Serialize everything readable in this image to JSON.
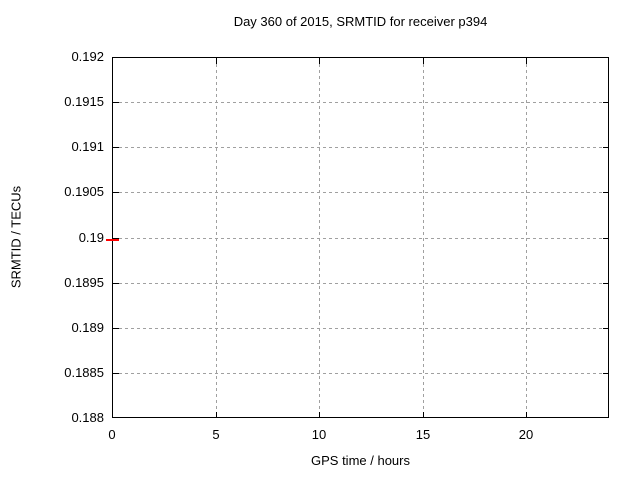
{
  "chart_data": {
    "type": "scatter",
    "title": "Day 360 of 2015, SRMTID for receiver p394",
    "xlabel": "GPS time / hours",
    "ylabel": "SRMTID / TECUs",
    "xlim": [
      0,
      24
    ],
    "ylim": [
      0.188,
      0.192
    ],
    "xticks": [
      {
        "value": 0,
        "label": "0"
      },
      {
        "value": 5,
        "label": "5"
      },
      {
        "value": 10,
        "label": "10"
      },
      {
        "value": 15,
        "label": "15"
      },
      {
        "value": 20,
        "label": "20"
      }
    ],
    "yticks": [
      {
        "value": 0.188,
        "label": "0.188"
      },
      {
        "value": 0.1885,
        "label": "0.1885"
      },
      {
        "value": 0.189,
        "label": "0.189"
      },
      {
        "value": 0.1895,
        "label": "0.1895"
      },
      {
        "value": 0.19,
        "label": "0.19"
      },
      {
        "value": 0.1905,
        "label": "0.1905"
      },
      {
        "value": 0.191,
        "label": "0.191"
      },
      {
        "value": 0.1915,
        "label": "0.1915"
      },
      {
        "value": 0.192,
        "label": "0.192"
      }
    ],
    "grid": true,
    "legend": "none",
    "colors": {
      "background": "#ffffff",
      "axis": "#000000",
      "grid": "#a0a0a0",
      "text": "#000000",
      "point": "#ff0000"
    },
    "series": [
      {
        "name": "SRMTID",
        "marker": "horizontal-dash",
        "color": "#ff0000",
        "points": [
          {
            "x": 0,
            "y": 0.18997
          }
        ]
      }
    ]
  }
}
